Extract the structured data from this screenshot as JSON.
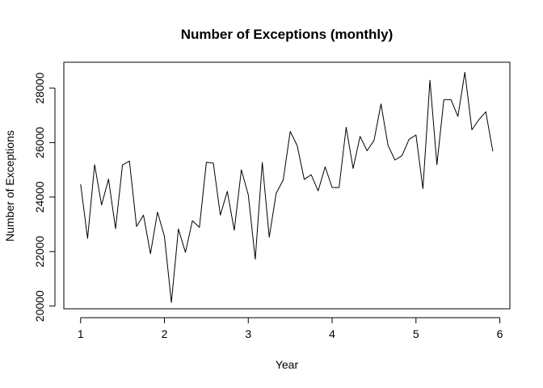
{
  "chart_data": {
    "type": "line",
    "title": "Number of Exceptions (monthly)",
    "xlabel": "Year",
    "ylabel": "Number of Exceptions",
    "xlim": [
      0.8,
      6.12
    ],
    "ylim": [
      19900,
      28950
    ],
    "xticks": [
      1,
      2,
      3,
      4,
      5,
      6
    ],
    "yticks": [
      20000,
      22000,
      24000,
      26000,
      28000
    ],
    "x_tick_labels": [
      "1",
      "2",
      "3",
      "4",
      "5",
      "6"
    ],
    "y_tick_labels": [
      "20000",
      "22000",
      "24000",
      "26000",
      "28000"
    ],
    "grid": false,
    "legend": "none",
    "line_color": "#000000",
    "series": [
      {
        "x": [
          1.0,
          1.083,
          1.167,
          1.25,
          1.333,
          1.417,
          1.5,
          1.583,
          1.667,
          1.75,
          1.833,
          1.917,
          2.0,
          2.083,
          2.167,
          2.25,
          2.333,
          2.417,
          2.5,
          2.583,
          2.667,
          2.75,
          2.833,
          2.917,
          3.0,
          3.083,
          3.167,
          3.25,
          3.333,
          3.417,
          3.5,
          3.583,
          3.667,
          3.75,
          3.833,
          3.917,
          4.0,
          4.083,
          4.167,
          4.25,
          4.333,
          4.417,
          4.5,
          4.583,
          4.667,
          4.75,
          4.833,
          4.917,
          5.0,
          5.083,
          5.167,
          5.25,
          5.333,
          5.417,
          5.5,
          5.583,
          5.667,
          5.75,
          5.833,
          5.917
        ],
        "y": [
          24470,
          22480,
          25190,
          23710,
          24660,
          22840,
          25180,
          25320,
          22920,
          23340,
          21920,
          23450,
          22560,
          20130,
          22830,
          21970,
          23130,
          22890,
          25280,
          25250,
          23340,
          24210,
          22780,
          25000,
          24080,
          21720,
          25270,
          22530,
          24140,
          24630,
          26410,
          25890,
          24650,
          24820,
          24230,
          25110,
          24350,
          24350,
          26560,
          25050,
          26230,
          25700,
          26080,
          27420,
          25900,
          25360,
          25520,
          26120,
          26280,
          24310,
          28290,
          25190,
          27580,
          27580,
          26960,
          28580,
          26470,
          26840,
          27130,
          25680
        ]
      }
    ]
  }
}
